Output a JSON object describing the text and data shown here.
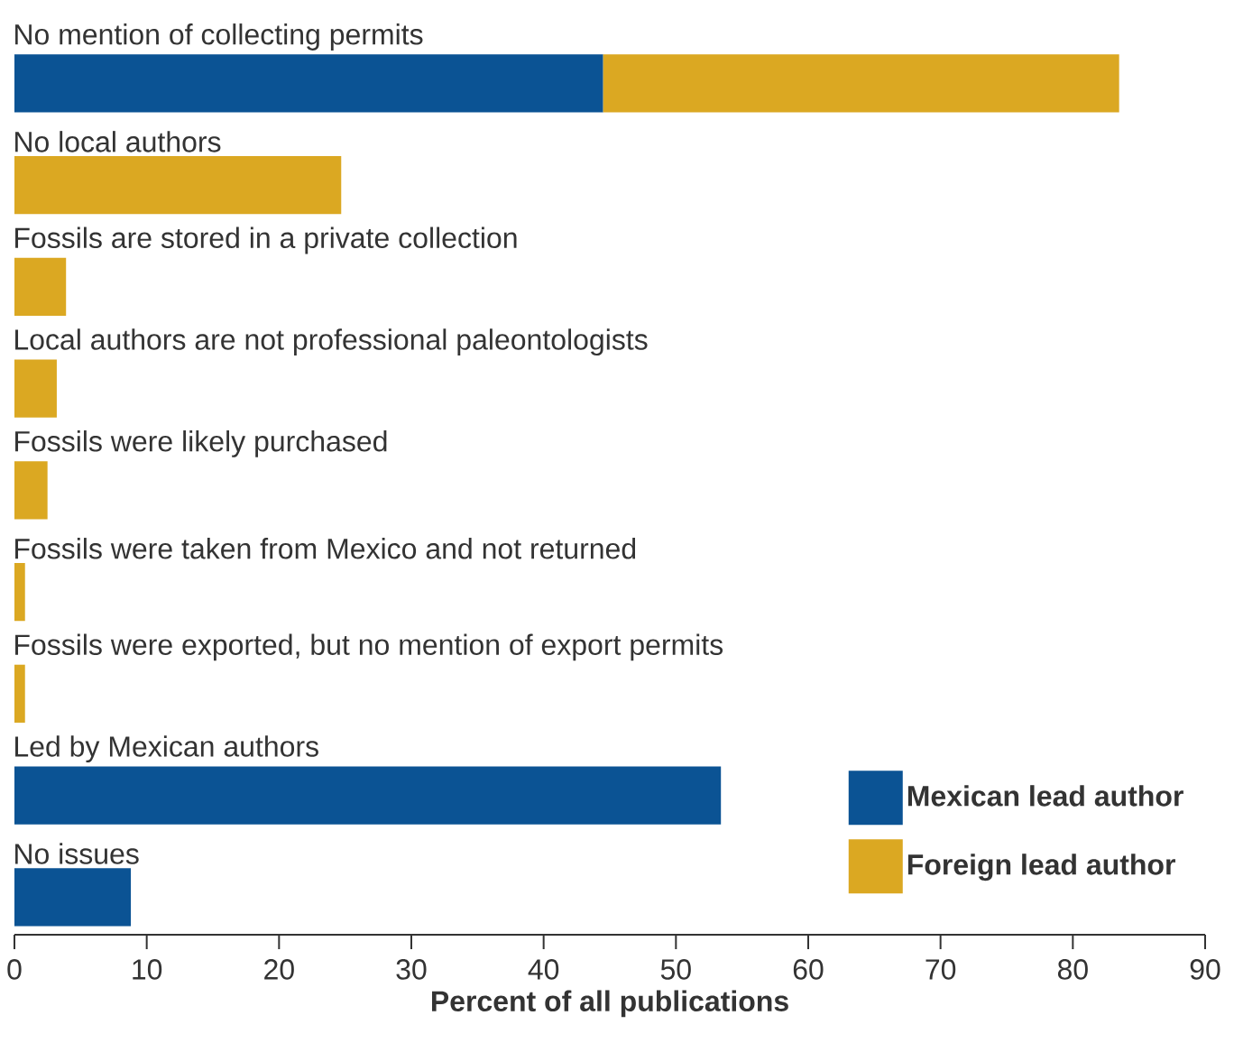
{
  "chart_data": {
    "type": "bar",
    "orientation": "horizontal",
    "stacked": true,
    "xlabel": "Percent of all publications",
    "categories": [
      "No mention of collecting permits",
      "No local authors",
      "Fossils are stored in a private collection",
      "Local authors are not professional paleontologists",
      "Fossils were likely purchased",
      "Fossils were taken from Mexico and not returned",
      "Fossils were exported, but no mention of export permits",
      "Led by Mexican authors",
      "No issues"
    ],
    "series": [
      {
        "name": "Mexican lead author",
        "color": "#0b5394",
        "values": [
          44.5,
          null,
          null,
          null,
          null,
          null,
          null,
          53.4,
          8.8
        ]
      },
      {
        "name": "Foreign lead author",
        "color": "#dba822",
        "values": [
          39.0,
          24.7,
          3.9,
          3.2,
          2.5,
          0.8,
          0.8,
          null,
          null
        ]
      }
    ],
    "xlim": [
      0,
      90
    ],
    "xticks": [
      0,
      10,
      20,
      30,
      40,
      50,
      60,
      70,
      80,
      90
    ],
    "legend": "bottom right"
  }
}
